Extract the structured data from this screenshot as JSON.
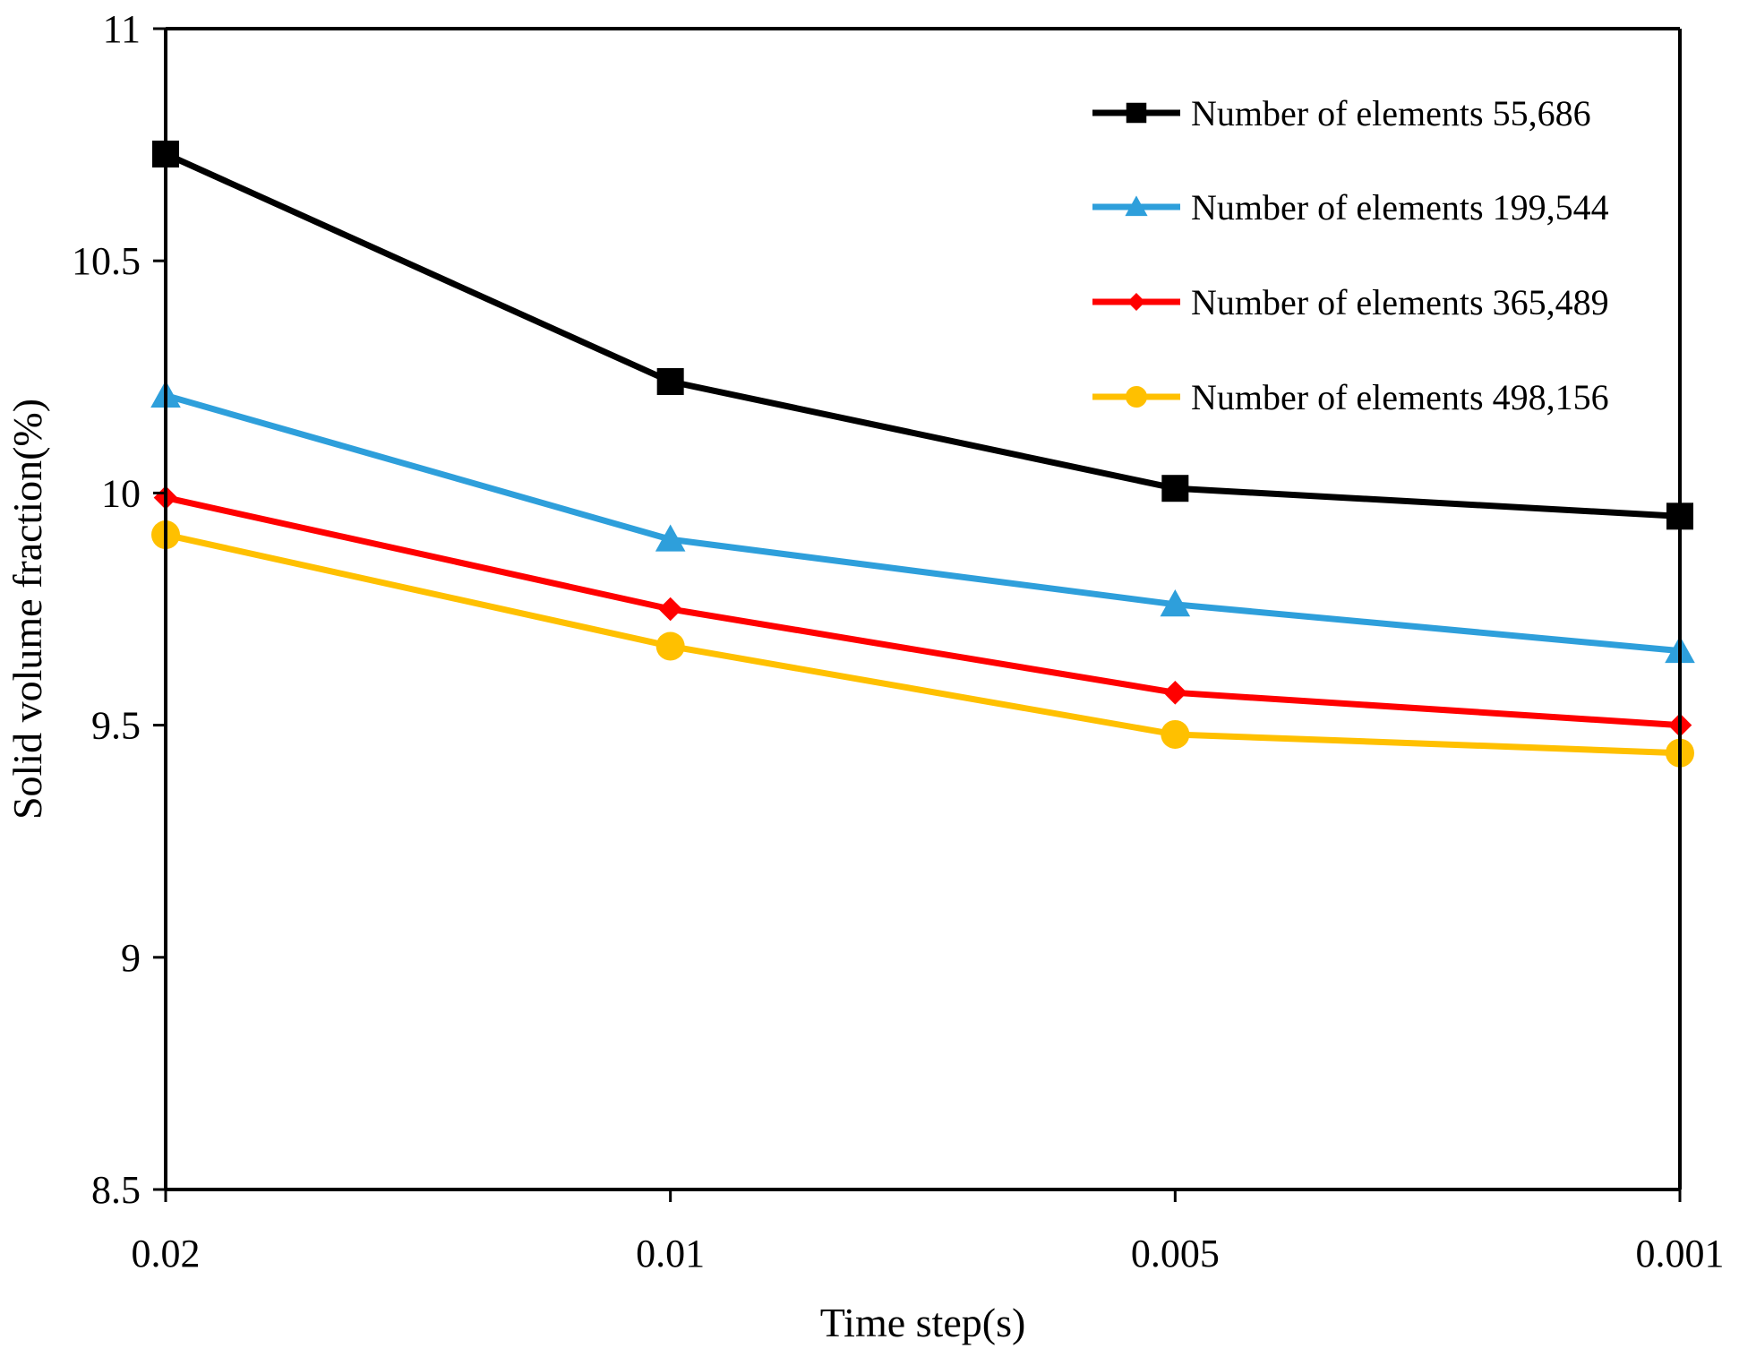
{
  "chart_data": {
    "type": "line",
    "title": "",
    "xlabel": "Time step(s)",
    "ylabel": "Solid  volume  fraction(%)",
    "categories": [
      "0.02",
      "0.01",
      "0.005",
      "0.001"
    ],
    "ylim": [
      8.5,
      11
    ],
    "yticks": [
      "8.5",
      "9",
      "9.5",
      "10",
      "10.5",
      "11"
    ],
    "ytick_values": [
      8.5,
      9,
      9.5,
      10,
      10.5,
      11
    ],
    "grid": false,
    "legend_position": "top-right",
    "series": [
      {
        "name": "Number of elements 55,686",
        "values": [
          10.73,
          10.24,
          10.01,
          9.95
        ],
        "color": "#000000",
        "marker": "square"
      },
      {
        "name": "Number of elements 199,544",
        "values": [
          10.21,
          9.9,
          9.76,
          9.66
        ],
        "color": "#2E9FDB",
        "marker": "triangle"
      },
      {
        "name": "Number of elements 365,489",
        "values": [
          9.99,
          9.75,
          9.57,
          9.5
        ],
        "color": "#FF0000",
        "marker": "diamond"
      },
      {
        "name": "Number of elements 498,156",
        "values": [
          9.91,
          9.67,
          9.48,
          9.44
        ],
        "color": "#FFC000",
        "marker": "circle"
      }
    ]
  }
}
